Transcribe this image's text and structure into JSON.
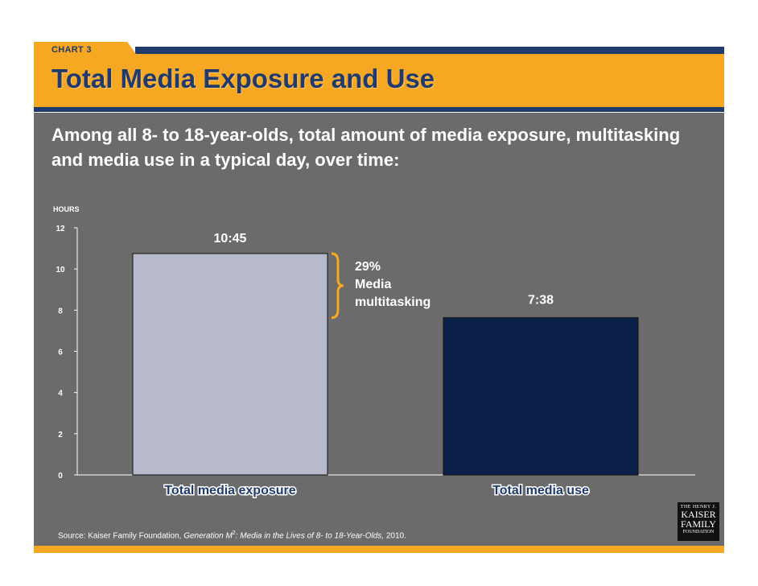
{
  "header": {
    "chart_number": "CHART 3",
    "title": "Total Media Exposure and Use"
  },
  "subtitle": "Among all 8- to 18-year-olds, total amount of media exposure, multitasking and media use in a typical day, over time:",
  "chart_data": {
    "type": "bar",
    "ylabel": "HOURS",
    "ylim": [
      0,
      12
    ],
    "yticks": [
      "0",
      "2",
      "4",
      "6",
      "8",
      "10",
      "12"
    ],
    "categories": [
      "Total media exposure",
      "Total media use"
    ],
    "values": [
      10.75,
      7.633
    ],
    "value_labels": [
      "10:45",
      "7:38"
    ],
    "colors": [
      "#b7bacb",
      "#0c214a"
    ],
    "annotation": {
      "text_lines": [
        "29%",
        "Media",
        "multitasking"
      ],
      "brace_from": 7.633,
      "brace_to": 10.75,
      "brace_color": "#f7a823"
    }
  },
  "source": {
    "prefix": "Source: Kaiser Family Foundation, ",
    "italic_title": "Generation M",
    "superscript": "2",
    "italic_rest": ": Media in the Lives of 8- to 18-Year-Olds,",
    "suffix": " 2010."
  },
  "logo": {
    "line1": "THE HENRY J.",
    "line2": "KAISER",
    "line3": "FAMILY",
    "line4": "FOUNDATION"
  },
  "colors": {
    "navy": "#1f3a6b",
    "orange": "#f7a823",
    "panel": "#6b6b6b"
  }
}
